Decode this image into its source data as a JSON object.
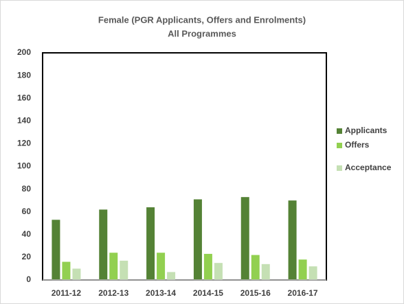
{
  "chart_data": {
    "type": "bar",
    "title": "Female (PGR Applicants, Offers  and Enrolments)",
    "subtitle": "All Programmes",
    "categories": [
      "2011-12",
      "2012-13",
      "2013-14",
      "2014-15",
      "2015-16",
      "2016-17"
    ],
    "series": [
      {
        "name": "Applicants",
        "color": "#548235",
        "values": [
          53,
          62,
          64,
          71,
          73,
          70
        ]
      },
      {
        "name": "Offers",
        "color": "#92d050",
        "values": [
          16,
          24,
          24,
          23,
          22,
          18
        ]
      },
      {
        "name": "Acceptance",
        "color": "#c5e0b4",
        "values": [
          10,
          17,
          7,
          15,
          14,
          12
        ]
      }
    ],
    "ylim": [
      0,
      200
    ],
    "yticks": [
      0,
      20,
      40,
      60,
      80,
      100,
      120,
      140,
      160,
      180,
      200
    ],
    "grid": false,
    "legend": "right"
  }
}
